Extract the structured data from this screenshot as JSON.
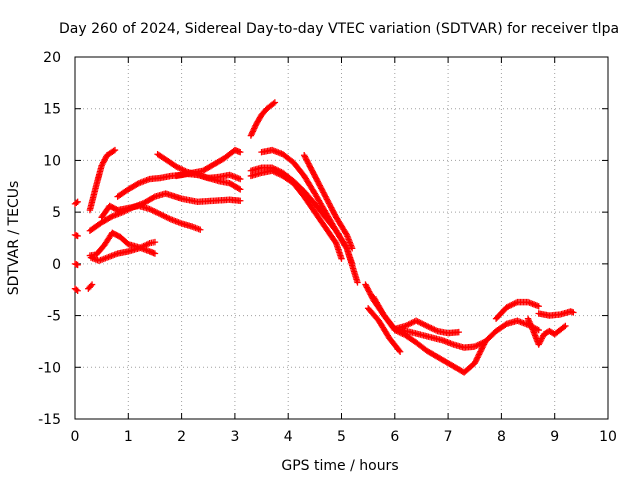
{
  "chart_data": {
    "type": "scatter",
    "title": "Day 260 of 2024, Sidereal Day-to-day VTEC variation (SDTVAR) for receiver tlpa",
    "xlabel": "GPS time / hours",
    "ylabel": "SDTVAR / TECUs",
    "xlim": [
      0,
      10
    ],
    "ylim": [
      -15,
      20
    ],
    "xticks": [
      0,
      1,
      2,
      3,
      4,
      5,
      6,
      7,
      8,
      9,
      10
    ],
    "yticks": [
      -15,
      -10,
      -5,
      0,
      5,
      10,
      15,
      20
    ],
    "grid": true,
    "marker": "+",
    "color": "#ff0000",
    "series": [
      {
        "name": "s1",
        "x": [
          0.0,
          0.05
        ],
        "y": [
          5.8,
          6.0
        ]
      },
      {
        "name": "s2",
        "x": [
          0.0,
          0.05
        ],
        "y": [
          2.8,
          2.7
        ]
      },
      {
        "name": "s3",
        "x": [
          0.0,
          0.05
        ],
        "y": [
          0.0,
          -0.1
        ]
      },
      {
        "name": "s4",
        "x": [
          0.0,
          0.05
        ],
        "y": [
          -2.4,
          -2.6
        ]
      },
      {
        "name": "s5",
        "x": [
          0.25,
          0.32
        ],
        "y": [
          -2.4,
          -2.0
        ]
      },
      {
        "name": "s6",
        "x": [
          0.28,
          0.4,
          0.5,
          0.6,
          0.75
        ],
        "y": [
          5.2,
          7.6,
          9.5,
          10.5,
          11.0
        ]
      },
      {
        "name": "s7",
        "x": [
          0.28,
          0.5,
          0.7,
          0.9,
          1.1,
          1.3,
          1.5,
          1.7,
          2.0,
          2.3,
          2.6,
          2.9,
          3.1
        ],
        "y": [
          3.2,
          4.0,
          4.6,
          5.0,
          5.5,
          5.9,
          6.5,
          6.8,
          6.3,
          6.0,
          6.1,
          6.2,
          6.1
        ]
      },
      {
        "name": "s8",
        "x": [
          0.28,
          0.4,
          0.55,
          0.7,
          0.85,
          1.0,
          1.2,
          1.4,
          1.5
        ],
        "y": [
          0.8,
          0.9,
          1.8,
          3.0,
          2.6,
          1.9,
          1.6,
          1.2,
          1.0
        ]
      },
      {
        "name": "s9",
        "x": [
          0.3,
          0.45,
          0.6,
          0.8,
          1.0,
          1.2,
          1.4,
          1.5
        ],
        "y": [
          0.6,
          0.3,
          0.6,
          1.0,
          1.2,
          1.5,
          2.0,
          2.1
        ]
      },
      {
        "name": "s10",
        "x": [
          0.5,
          0.65,
          0.8,
          1.0,
          1.2,
          1.4,
          1.6,
          1.8,
          2.0,
          2.2,
          2.35
        ],
        "y": [
          4.5,
          5.6,
          5.2,
          5.4,
          5.6,
          5.3,
          4.8,
          4.3,
          3.9,
          3.6,
          3.3
        ]
      },
      {
        "name": "s11",
        "x": [
          0.8,
          1.0,
          1.2,
          1.4,
          1.6,
          1.8,
          2.0,
          2.2,
          2.4,
          2.6,
          2.8,
          3.0,
          3.1
        ],
        "y": [
          6.5,
          7.2,
          7.8,
          8.2,
          8.3,
          8.5,
          8.6,
          8.8,
          9.0,
          9.6,
          10.2,
          11.0,
          10.8
        ]
      },
      {
        "name": "s12",
        "x": [
          1.55,
          1.7,
          1.9,
          2.1,
          2.3,
          2.5,
          2.7,
          2.9,
          3.1
        ],
        "y": [
          10.6,
          10.1,
          9.4,
          8.9,
          8.6,
          8.3,
          8.0,
          7.8,
          7.2
        ]
      },
      {
        "name": "s13",
        "x": [
          1.9,
          2.1,
          2.3,
          2.5,
          2.7,
          2.9,
          3.1
        ],
        "y": [
          8.5,
          8.7,
          8.6,
          8.3,
          8.4,
          8.6,
          8.2
        ]
      },
      {
        "name": "s14",
        "x": [
          3.3,
          3.4,
          3.5,
          3.6,
          3.7,
          3.75
        ],
        "y": [
          12.4,
          13.5,
          14.4,
          15.0,
          15.4,
          15.6
        ]
      },
      {
        "name": "s15",
        "x": [
          3.3,
          3.5,
          3.7,
          3.9,
          4.1,
          4.3,
          4.5,
          4.7,
          4.9,
          5.1,
          5.2
        ],
        "y": [
          9.0,
          9.3,
          9.3,
          8.8,
          8.0,
          7.0,
          5.8,
          4.5,
          3.2,
          1.5,
          0.0
        ]
      },
      {
        "name": "s16",
        "x": [
          3.3,
          3.5,
          3.7,
          3.9,
          4.1,
          4.3,
          4.5,
          4.7,
          4.9,
          5.0
        ],
        "y": [
          8.5,
          8.8,
          9.0,
          8.5,
          7.8,
          6.5,
          5.0,
          3.5,
          2.0,
          0.5
        ]
      },
      {
        "name": "s17",
        "x": [
          3.5,
          3.7,
          3.9,
          4.1,
          4.3,
          4.5,
          4.7,
          4.9,
          5.1,
          5.3
        ],
        "y": [
          10.8,
          11.0,
          10.6,
          9.8,
          8.5,
          6.8,
          5.0,
          3.2,
          1.5,
          -1.8
        ]
      },
      {
        "name": "s18",
        "x": [
          4.3,
          4.5,
          4.7,
          4.9,
          5.1,
          5.2
        ],
        "y": [
          10.5,
          8.5,
          6.5,
          4.5,
          2.8,
          1.5
        ]
      },
      {
        "name": "s19",
        "x": [
          5.45,
          5.6,
          5.8,
          6.0,
          6.2,
          6.4,
          6.6,
          6.8,
          7.0,
          7.2
        ],
        "y": [
          -2.0,
          -3.5,
          -5.0,
          -6.3,
          -6.0,
          -5.5,
          -6.0,
          -6.5,
          -6.7,
          -6.6
        ]
      },
      {
        "name": "s20",
        "x": [
          5.5,
          5.7,
          5.9,
          6.1
        ],
        "y": [
          -4.3,
          -5.5,
          -7.2,
          -8.5
        ]
      },
      {
        "name": "s21",
        "x": [
          5.6,
          5.8,
          6.0,
          6.2,
          6.4,
          6.6,
          6.8,
          7.0,
          7.2,
          7.3,
          7.5,
          7.7
        ],
        "y": [
          -3.2,
          -5.0,
          -6.4,
          -6.9,
          -7.6,
          -8.4,
          -9.0,
          -9.6,
          -10.2,
          -10.5,
          -9.6,
          -7.5
        ]
      },
      {
        "name": "s22",
        "x": [
          6.0,
          6.3,
          6.6,
          6.9,
          7.1,
          7.3,
          7.5,
          7.7,
          7.9,
          8.1,
          8.3,
          8.5,
          8.7
        ],
        "y": [
          -6.3,
          -6.6,
          -7.0,
          -7.4,
          -7.8,
          -8.1,
          -8.0,
          -7.5,
          -6.5,
          -5.8,
          -5.5,
          -5.9,
          -6.4
        ]
      },
      {
        "name": "s23",
        "x": [
          7.9,
          8.1,
          8.3,
          8.5,
          8.7
        ],
        "y": [
          -5.3,
          -4.2,
          -3.7,
          -3.7,
          -4.1
        ]
      },
      {
        "name": "s24",
        "x": [
          8.5,
          8.6,
          8.7,
          8.8,
          8.9,
          9.0,
          9.2
        ],
        "y": [
          -5.3,
          -6.5,
          -7.8,
          -6.8,
          -6.5,
          -6.8,
          -6.0
        ]
      },
      {
        "name": "s25",
        "x": [
          8.7,
          8.9,
          9.1,
          9.3,
          9.35
        ],
        "y": [
          -4.8,
          -5.0,
          -4.9,
          -4.6,
          -4.7
        ]
      }
    ]
  }
}
